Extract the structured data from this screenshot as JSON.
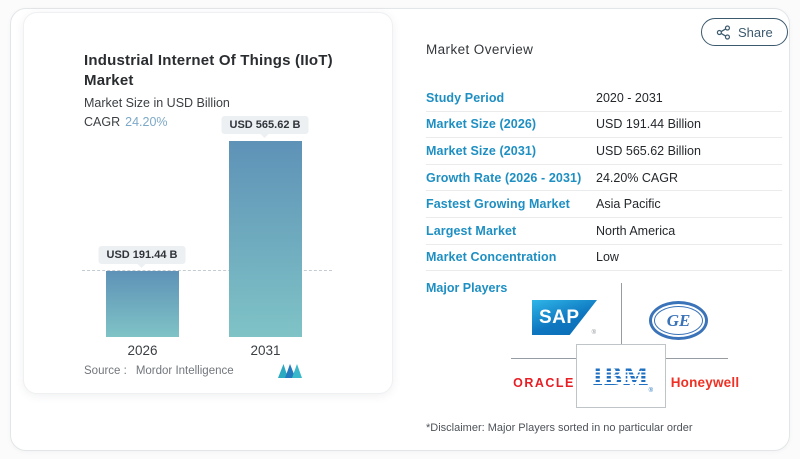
{
  "header": {
    "share_label": "Share"
  },
  "chart_panel": {
    "title": "Industrial Internet Of Things (IIoT) Market",
    "subtitle": "Market Size in USD Billion",
    "cagr_label": "CAGR",
    "cagr_value": "24.20%",
    "source_label": "Source :",
    "source_value": "Mordor Intelligence"
  },
  "chart_data": {
    "type": "bar",
    "title": "Industrial Internet Of Things (IIoT) Market",
    "subtitle": "Market Size in USD Billion",
    "unit": "USD Billion",
    "cagr": "24.20%",
    "categories": [
      "2026",
      "2031"
    ],
    "values": [
      191.44,
      565.62
    ],
    "value_labels": [
      "USD 191.44 B",
      "USD 565.62 B"
    ],
    "ylim": [
      0,
      565.62
    ],
    "grid": false,
    "legend": false,
    "reference_line": {
      "style": "dashed",
      "at": 191.44
    },
    "source": "Mordor Intelligence"
  },
  "overview": {
    "heading": "Market Overview",
    "rows": [
      {
        "label": "Study Period",
        "value": "2020 - 2031"
      },
      {
        "label": "Market Size (2026)",
        "value": "USD 191.44 Billion"
      },
      {
        "label": "Market Size (2031)",
        "value": "USD 565.62 Billion"
      },
      {
        "label": "Growth Rate (2026 - 2031)",
        "value": "24.20% CAGR"
      },
      {
        "label": "Fastest Growing Market",
        "value": "Asia Pacific"
      },
      {
        "label": "Largest Market",
        "value": "North America"
      },
      {
        "label": "Market Concentration",
        "value": "Low"
      }
    ],
    "major_players_label": "Major Players",
    "players": [
      {
        "name": "SAP"
      },
      {
        "name": "GE"
      },
      {
        "name": "ORACLE"
      },
      {
        "name": "IBM"
      },
      {
        "name": "Honeywell"
      }
    ],
    "reg_mark": "®",
    "disclaimer": "*Disclaimer: Major Players sorted in no particular order"
  },
  "colors": {
    "accent_blue": "#1e8fc2",
    "cagr_blue": "#7da9c8",
    "bar_top": "#5e92b7",
    "bar_bottom": "#7fc3c6",
    "share_outline": "#3c5a6e",
    "sap_blue_light": "#2fb6e8",
    "sap_blue_dark": "#0a6cb4",
    "ge_blue": "#3b73b9",
    "ibm_blue": "#1f70c1",
    "oracle_red": "#e81e25",
    "honeywell_red": "#ee3124",
    "value_text": "#24282c",
    "muted_text": "#71767c"
  }
}
